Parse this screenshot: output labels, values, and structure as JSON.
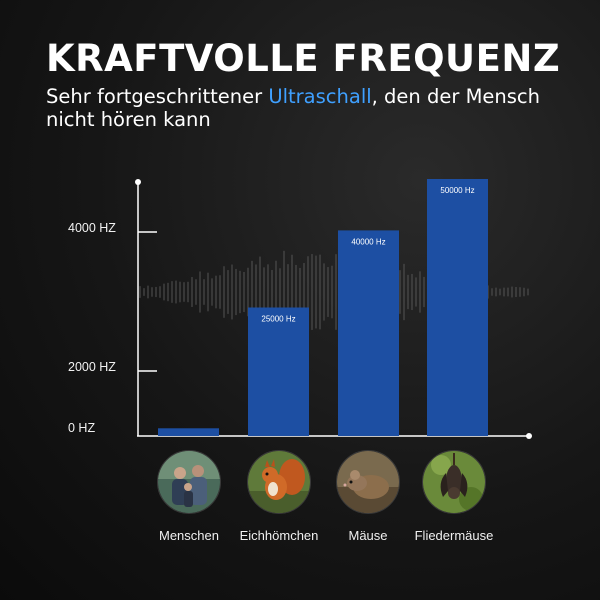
{
  "header": {
    "title": "KRAFTVOLLE FREQUENZ",
    "subtitle_pre": "Sehr fortgeschrittener ",
    "subtitle_accent": "Ultraschall",
    "subtitle_post": ", den der Mensch nicht hören kann"
  },
  "colors": {
    "accent": "#3fa0ff",
    "bar": "#1d4fa3",
    "background": "#161616"
  },
  "chart_data": {
    "type": "bar",
    "categories": [
      "Menschen",
      "Eichhömchen",
      "Mäuse",
      "Fliedermäuse"
    ],
    "values": [
      1500,
      25000,
      40000,
      50000
    ],
    "bar_labels": [
      "",
      "25000 Hz",
      "40000 Hz",
      "50000 Hz"
    ],
    "yticks": [
      "0 HZ",
      "2000 HZ",
      "4000 HZ"
    ],
    "title": "KRAFTVOLLE FREQUENZ",
    "xlabel": "",
    "ylabel": ""
  },
  "categories": [
    {
      "label": "Menschen",
      "icon": "people-photo-icon"
    },
    {
      "label": "Eichhömchen",
      "icon": "squirrel-photo-icon"
    },
    {
      "label": "Mäuse",
      "icon": "mouse-photo-icon"
    },
    {
      "label": "Fliedermäuse",
      "icon": "bat-photo-icon"
    }
  ]
}
